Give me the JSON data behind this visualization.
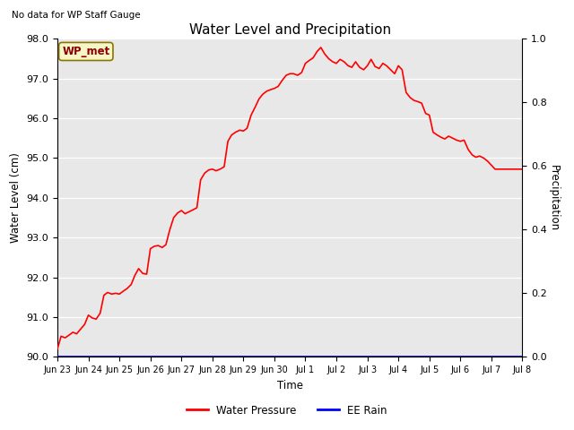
{
  "title": "Water Level and Precipitation",
  "top_left_text": "No data for WP Staff Gauge",
  "xlabel": "Time",
  "ylabel_left": "Water Level (cm)",
  "ylabel_right": "Precipitation",
  "annotation_label": "WP_met",
  "legend_entries": [
    "Water Pressure",
    "EE Rain"
  ],
  "bg_color": "#e8e8e8",
  "fig_color": "#ffffff",
  "ylim_left": [
    90.0,
    98.0
  ],
  "ylim_right": [
    0.0,
    1.0
  ],
  "yticks_left": [
    90.0,
    91.0,
    92.0,
    93.0,
    94.0,
    95.0,
    96.0,
    97.0,
    98.0
  ],
  "yticks_right": [
    0.0,
    0.2,
    0.4,
    0.6,
    0.8,
    1.0
  ],
  "xtick_positions": [
    0,
    1,
    2,
    3,
    4,
    5,
    6,
    7,
    8,
    9,
    10,
    11,
    12,
    13,
    14,
    15
  ],
  "xtick_labels": [
    "Jun 23",
    "Jun 24",
    "Jun 25",
    "Jun 26",
    "Jun 27",
    "Jun 28",
    "Jun 29",
    "Jun 30",
    "Jul 1",
    "Jul 2",
    "Jul 3",
    "Jul 4",
    "Jul 5",
    "Jul 6",
    "Jul 7",
    "Jul 8"
  ],
  "water_x": [
    0.0,
    0.12,
    0.25,
    0.38,
    0.5,
    0.62,
    0.75,
    0.88,
    1.0,
    1.12,
    1.25,
    1.38,
    1.5,
    1.62,
    1.75,
    1.88,
    2.0,
    2.12,
    2.25,
    2.38,
    2.5,
    2.62,
    2.75,
    2.88,
    3.0,
    3.12,
    3.25,
    3.38,
    3.5,
    3.62,
    3.75,
    3.88,
    4.0,
    4.12,
    4.25,
    4.38,
    4.5,
    4.62,
    4.75,
    4.88,
    5.0,
    5.12,
    5.25,
    5.38,
    5.5,
    5.62,
    5.75,
    5.88,
    6.0,
    6.12,
    6.25,
    6.38,
    6.5,
    6.62,
    6.75,
    6.88,
    7.0,
    7.12,
    7.25,
    7.38,
    7.5,
    7.62,
    7.75,
    7.88,
    8.0,
    8.12,
    8.25,
    8.38,
    8.5,
    8.62,
    8.75,
    8.88,
    9.0,
    9.12,
    9.25,
    9.38,
    9.5,
    9.62,
    9.75,
    9.88,
    10.0,
    10.12,
    10.25,
    10.38,
    10.5,
    10.62,
    10.75,
    10.88,
    11.0,
    11.12,
    11.25,
    11.38,
    11.5,
    11.62,
    11.75,
    11.88,
    12.0,
    12.12,
    12.25,
    12.38,
    12.5,
    12.62,
    12.75,
    12.88,
    13.0,
    13.12,
    13.25,
    13.38,
    13.5,
    13.62,
    13.75,
    13.88,
    14.0,
    14.12,
    14.25,
    14.38,
    14.5,
    14.62,
    14.75,
    14.88,
    15.0
  ],
  "water_y": [
    90.2,
    90.52,
    90.48,
    90.55,
    90.62,
    90.58,
    90.7,
    90.82,
    91.05,
    90.98,
    90.95,
    91.1,
    91.55,
    91.62,
    91.58,
    91.6,
    91.58,
    91.65,
    91.72,
    91.82,
    92.05,
    92.22,
    92.1,
    92.08,
    92.72,
    92.78,
    92.8,
    92.75,
    92.82,
    93.18,
    93.5,
    93.62,
    93.68,
    93.6,
    93.65,
    93.7,
    93.75,
    94.45,
    94.62,
    94.7,
    94.72,
    94.68,
    94.72,
    94.78,
    95.42,
    95.58,
    95.65,
    95.7,
    95.68,
    95.75,
    96.08,
    96.28,
    96.48,
    96.6,
    96.68,
    96.72,
    96.75,
    96.8,
    96.95,
    97.08,
    97.12,
    97.12,
    97.08,
    97.15,
    97.38,
    97.45,
    97.52,
    97.68,
    97.78,
    97.62,
    97.5,
    97.42,
    97.38,
    97.48,
    97.42,
    97.32,
    97.28,
    97.42,
    97.28,
    97.22,
    97.32,
    97.48,
    97.3,
    97.25,
    97.38,
    97.32,
    97.22,
    97.12,
    97.32,
    97.22,
    96.65,
    96.52,
    96.45,
    96.42,
    96.38,
    96.12,
    96.08,
    95.65,
    95.58,
    95.52,
    95.48,
    95.55,
    95.5,
    95.45,
    95.42,
    95.45,
    95.22,
    95.08,
    95.02,
    95.05,
    95.0,
    94.92,
    94.82,
    94.72,
    94.72,
    94.72,
    94.72,
    94.72,
    94.72,
    94.72,
    94.72
  ]
}
